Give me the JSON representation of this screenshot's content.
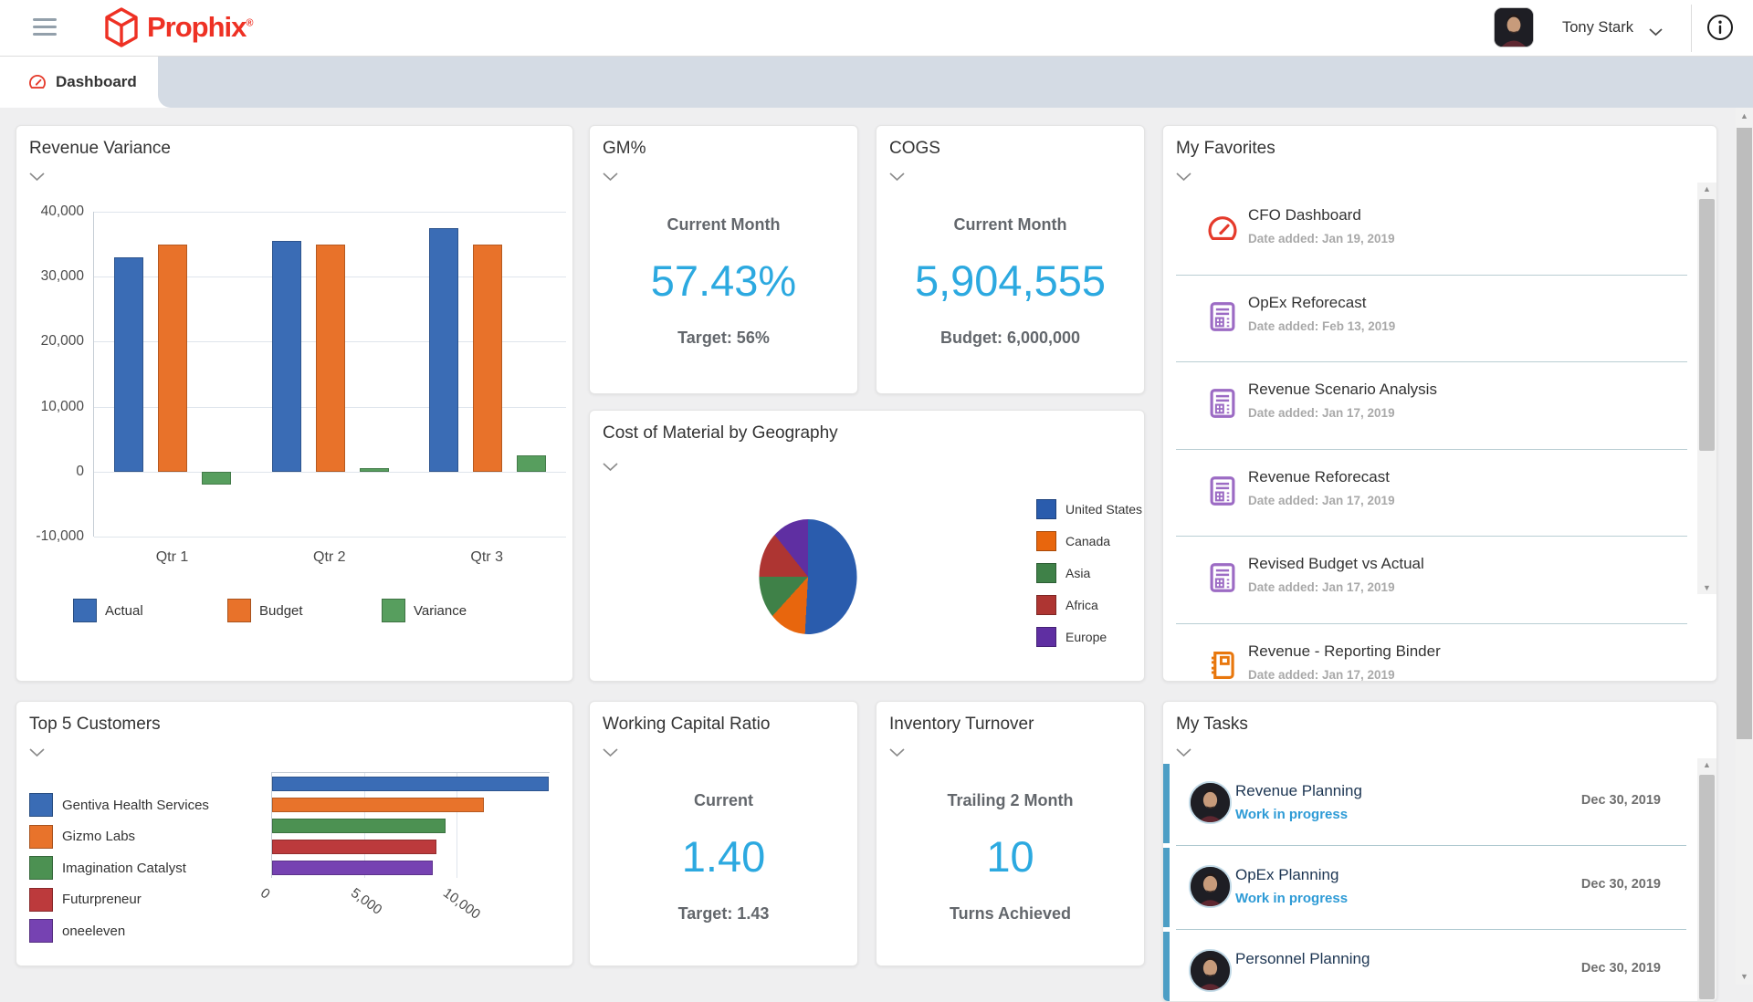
{
  "header": {
    "brand": "Prophix",
    "brand_mark": "®",
    "user_name": "Tony Stark"
  },
  "tab": {
    "label": "Dashboard"
  },
  "icon_colors": {
    "dashboard-icon": "#E53A2B",
    "report-icon": "#9C6BC4",
    "binder-icon": "#E8770D"
  },
  "accent": {
    "kpi_value_color": "#2CA9E0",
    "task_accent_color": "#4D9EC5",
    "brand_red": "#EE3124",
    "status_blue": "#2E9BD6"
  },
  "cards": {
    "revenue_variance": {
      "title": "Revenue Variance"
    },
    "gm": {
      "title": "GM%",
      "subtitle": "Current Month",
      "value": "57.43%",
      "target": "Target: 56%"
    },
    "cogs": {
      "title": "COGS",
      "subtitle": "Current Month",
      "value": "5,904,555",
      "target": "Budget: 6,000,000"
    },
    "favorites": {
      "title": "My Favorites",
      "items": [
        {
          "label": "CFO Dashboard",
          "date": "Date added: Jan 19, 2019",
          "icon": "dashboard-icon"
        },
        {
          "label": "OpEx Reforecast",
          "date": "Date added: Feb 13, 2019",
          "icon": "report-icon"
        },
        {
          "label": "Revenue Scenario Analysis",
          "date": "Date added: Jan 17, 2019",
          "icon": "report-icon"
        },
        {
          "label": "Revenue Reforecast",
          "date": "Date added: Jan 17, 2019",
          "icon": "report-icon"
        },
        {
          "label": "Revised Budget vs Actual",
          "date": "Date added: Jan 17, 2019",
          "icon": "report-icon"
        },
        {
          "label": "Revenue - Reporting Binder",
          "date": "Date added: Jan 17, 2019",
          "icon": "binder-icon"
        }
      ]
    },
    "cost_material": {
      "title": "Cost of Material by Geography"
    },
    "top5": {
      "title": "Top 5 Customers"
    },
    "working_capital": {
      "title": "Working Capital Ratio",
      "subtitle": "Current",
      "value": "1.40",
      "target": "Target: 1.43"
    },
    "inventory": {
      "title": "Inventory Turnover",
      "subtitle": "Trailing 2 Month",
      "value": "10",
      "target": "Turns Achieved"
    },
    "tasks": {
      "title": "My Tasks",
      "items": [
        {
          "title": "Revenue Planning",
          "status": "Work in progress",
          "date": "Dec 30, 2019"
        },
        {
          "title": "OpEx Planning",
          "status": "Work in progress",
          "date": "Dec 30, 2019"
        },
        {
          "title": "Personnel Planning",
          "date": "Dec 30, 2019"
        }
      ]
    }
  },
  "chart_data": [
    {
      "id": "revenue_variance",
      "type": "bar",
      "title": "Revenue Variance",
      "categories": [
        "Qtr 1",
        "Qtr 2",
        "Qtr 3"
      ],
      "series": [
        {
          "name": "Actual",
          "color": "#3A6CB5",
          "values": [
            33000,
            35500,
            37500
          ]
        },
        {
          "name": "Budget",
          "color": "#E8722A",
          "values": [
            35000,
            35000,
            35000
          ]
        },
        {
          "name": "Variance",
          "color": "#579E5E",
          "values": [
            -2000,
            500,
            2500
          ]
        }
      ],
      "ylim": [
        -10000,
        40000
      ],
      "ytick_labels": [
        "40,000",
        "30,000",
        "20,000",
        "10,000",
        "0",
        "-10,000"
      ],
      "grid": true,
      "legend_position": "bottom"
    },
    {
      "id": "cost_of_material_by_geography",
      "type": "pie",
      "title": "Cost of Material by Geography",
      "labels": [
        "United States",
        "Canada",
        "Asia",
        "Africa",
        "Europe"
      ],
      "values": [
        51,
        12,
        12,
        13,
        12
      ],
      "colors": [
        "#2A5CAD",
        "#E8660D",
        "#3F8148",
        "#AE3532",
        "#5F2FA2"
      ],
      "legend_position": "right"
    },
    {
      "id": "top_5_customers",
      "type": "bar-horizontal",
      "title": "Top 5 Customers",
      "categories": [
        "Gentiva Health Services",
        "Gizmo Labs",
        "Imagination Catalyst",
        "Futurpreneur",
        "oneeleven"
      ],
      "values": [
        15000,
        11500,
        9400,
        8900,
        8700
      ],
      "colors": [
        "#3A6CB5",
        "#E8732B",
        "#4C9152",
        "#BC3A3C",
        "#7642B2"
      ],
      "xlim": [
        0,
        15000
      ],
      "xtick_labels": [
        "0",
        "5,000",
        "10,000"
      ],
      "legend_position": "left"
    }
  ]
}
